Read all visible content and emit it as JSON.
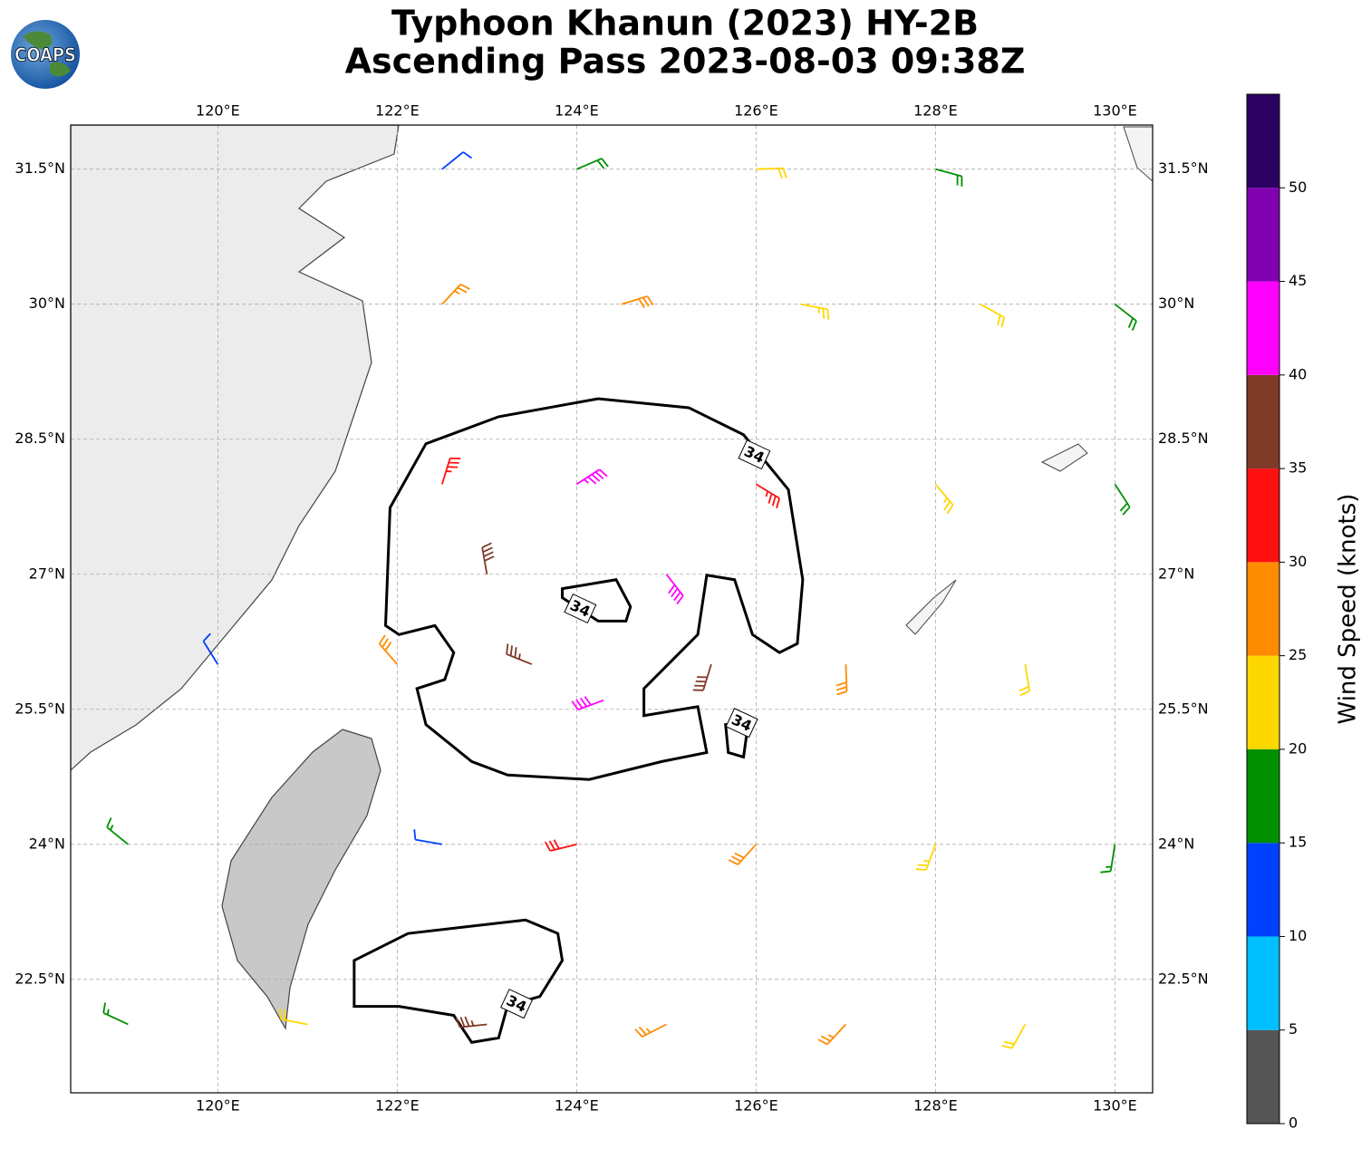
{
  "header": {
    "title_lines": [
      "Typhoon Khanun (2023) HY-2B",
      "Ascending Pass 2023-08-03 09:38Z"
    ]
  },
  "logo": "COAPS",
  "chart_data": {
    "type": "barbs",
    "xlim": [
      118.36,
      130.42
    ],
    "ylim": [
      21.24,
      31.99
    ],
    "xticks": [
      {
        "value": 120,
        "label": "120°E"
      },
      {
        "value": 122,
        "label": "122°E"
      },
      {
        "value": 124,
        "label": "124°E"
      },
      {
        "value": 126,
        "label": "126°E"
      },
      {
        "value": 128,
        "label": "128°E"
      },
      {
        "value": 130,
        "label": "130°E"
      }
    ],
    "yticks": [
      {
        "value": 22.5,
        "label": "22.5°N"
      },
      {
        "value": 24,
        "label": "24°N"
      },
      {
        "value": 25.5,
        "label": "25.5°N"
      },
      {
        "value": 27,
        "label": "27°N"
      },
      {
        "value": 28.5,
        "label": "28.5°N"
      },
      {
        "value": 30,
        "label": "30°N"
      },
      {
        "value": 31.5,
        "label": "31.5°N"
      }
    ],
    "grid": true,
    "barbs": [
      {
        "lon": 119,
        "lat": 22,
        "speed": 17,
        "direction": 115
      },
      {
        "lon": 121,
        "lat": 22,
        "speed": 21,
        "direction": 101
      },
      {
        "lon": 123,
        "lat": 22,
        "speed": 37,
        "direction": 84
      },
      {
        "lon": 125,
        "lat": 22,
        "speed": 27,
        "direction": 63
      },
      {
        "lon": 127,
        "lat": 22,
        "speed": 26,
        "direction": 43
      },
      {
        "lon": 129,
        "lat": 22,
        "speed": 22,
        "direction": 29
      },
      {
        "lon": 119,
        "lat": 24,
        "speed": 17,
        "direction": 129
      },
      {
        "lon": 122.5,
        "lat": 24,
        "speed": 12,
        "direction": 100
      },
      {
        "lon": 124,
        "lat": 24,
        "speed": 32,
        "direction": 76
      },
      {
        "lon": 126,
        "lat": 24,
        "speed": 28,
        "direction": 42
      },
      {
        "lon": 128,
        "lat": 24,
        "speed": 24,
        "direction": 20
      },
      {
        "lon": 130,
        "lat": 24,
        "speed": 17,
        "direction": 9
      },
      {
        "lon": 120,
        "lat": 26,
        "speed": 12,
        "direction": 148
      },
      {
        "lon": 122,
        "lat": 26,
        "speed": 28,
        "direction": 139
      },
      {
        "lon": 123.5,
        "lat": 26,
        "speed": 37,
        "direction": 112
      },
      {
        "lon": 124.3,
        "lat": 25.6,
        "speed": 42,
        "direction": 70
      },
      {
        "lon": 125.5,
        "lat": 26,
        "speed": 38,
        "direction": 17
      },
      {
        "lon": 127,
        "lat": 26,
        "speed": 28,
        "direction": 358
      },
      {
        "lon": 129,
        "lat": 26,
        "speed": 22,
        "direction": 351
      },
      {
        "lon": 123,
        "lat": 27,
        "speed": 38,
        "direction": 170
      },
      {
        "lon": 125,
        "lat": 27,
        "speed": 42,
        "direction": 322
      },
      {
        "lon": 122.5,
        "lat": 28,
        "speed": 33,
        "direction": 197
      },
      {
        "lon": 124,
        "lat": 28,
        "speed": 43,
        "direction": 237
      },
      {
        "lon": 126,
        "lat": 28,
        "speed": 34,
        "direction": 301
      },
      {
        "lon": 128,
        "lat": 28,
        "speed": 23,
        "direction": 320
      },
      {
        "lon": 130,
        "lat": 28,
        "speed": 18,
        "direction": 327
      },
      {
        "lon": 122.5,
        "lat": 30,
        "speed": 27,
        "direction": 223
      },
      {
        "lon": 124.5,
        "lat": 30,
        "speed": 28,
        "direction": 253
      },
      {
        "lon": 126.5,
        "lat": 30,
        "speed": 24,
        "direction": 281
      },
      {
        "lon": 128.5,
        "lat": 30,
        "speed": 22,
        "direction": 299
      },
      {
        "lon": 130,
        "lat": 30,
        "speed": 18,
        "direction": 308
      },
      {
        "lon": 122.5,
        "lat": 31.5,
        "speed": 12,
        "direction": 231
      },
      {
        "lon": 124,
        "lat": 31.5,
        "speed": 18,
        "direction": 247
      },
      {
        "lon": 126,
        "lat": 31.5,
        "speed": 22,
        "direction": 268
      },
      {
        "lon": 128,
        "lat": 31.5,
        "speed": 18,
        "direction": 285
      }
    ],
    "contours": [
      {
        "level": 34,
        "points": [
          [
            121.92,
            27.74
          ],
          [
            122.32,
            28.45
          ],
          [
            123.13,
            28.75
          ],
          [
            124.24,
            28.95
          ],
          [
            125.25,
            28.85
          ],
          [
            125.86,
            28.55
          ],
          [
            126.36,
            27.94
          ],
          [
            126.52,
            26.94
          ],
          [
            126.46,
            26.23
          ],
          [
            126.26,
            26.13
          ],
          [
            125.96,
            26.33
          ],
          [
            125.76,
            26.94
          ],
          [
            125.45,
            26.99
          ],
          [
            125.35,
            26.33
          ],
          [
            124.75,
            25.73
          ],
          [
            124.75,
            25.43
          ],
          [
            125.35,
            25.53
          ],
          [
            125.45,
            25.02
          ],
          [
            124.95,
            24.92
          ],
          [
            124.14,
            24.72
          ],
          [
            123.23,
            24.77
          ],
          [
            122.83,
            24.92
          ],
          [
            122.32,
            25.33
          ],
          [
            122.22,
            25.73
          ],
          [
            122.53,
            25.83
          ],
          [
            122.63,
            26.13
          ],
          [
            122.42,
            26.43
          ],
          [
            122.02,
            26.33
          ],
          [
            121.87,
            26.43
          ]
        ]
      },
      {
        "level": 34,
        "points": [
          [
            123.84,
            26.84
          ],
          [
            124.44,
            26.94
          ],
          [
            124.6,
            26.64
          ],
          [
            124.55,
            26.48
          ],
          [
            124.24,
            26.48
          ],
          [
            123.84,
            26.74
          ]
        ]
      },
      {
        "level": 34,
        "points": [
          [
            125.66,
            25.33
          ],
          [
            125.91,
            25.33
          ],
          [
            125.86,
            24.97
          ],
          [
            125.69,
            25.02
          ]
        ]
      },
      {
        "level": 34,
        "points": [
          [
            121.52,
            22.71
          ],
          [
            122.12,
            23.01
          ],
          [
            123.43,
            23.16
          ],
          [
            123.79,
            23.01
          ],
          [
            123.84,
            22.71
          ],
          [
            123.59,
            22.31
          ],
          [
            123.23,
            22.21
          ],
          [
            123.13,
            21.85
          ],
          [
            122.83,
            21.8
          ],
          [
            122.63,
            22.1
          ],
          [
            122.02,
            22.2
          ],
          [
            121.52,
            22.2
          ]
        ]
      }
    ],
    "contour_labels": [
      {
        "level": 34,
        "lon": 125.98,
        "lat": 28.33
      },
      {
        "level": 34,
        "lon": 124.04,
        "lat": 26.62
      },
      {
        "level": 34,
        "lon": 125.84,
        "lat": 25.35
      },
      {
        "level": 34,
        "lon": 123.33,
        "lat": 22.23
      }
    ],
    "colorbar": {
      "label": "Wind Speed (knots)",
      "ylim": [
        0,
        55
      ],
      "bounds": [
        0,
        5,
        10,
        15,
        20,
        25,
        30,
        35,
        40,
        45,
        50,
        55
      ],
      "yticks": [
        0,
        5,
        10,
        15,
        20,
        25,
        30,
        35,
        40,
        45,
        50
      ],
      "colors": [
        "#555555",
        "#00bfff",
        "#0040ff",
        "#009000",
        "#ffd700",
        "#ff8c00",
        "#ff1010",
        "#803a28",
        "#ff00ff",
        "#8000b0",
        "#2a0060"
      ]
    }
  }
}
